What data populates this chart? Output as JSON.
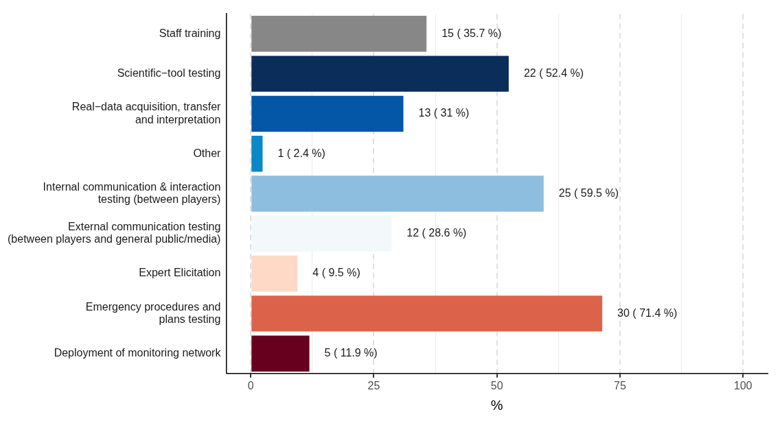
{
  "chart_data": {
    "type": "bar",
    "orientation": "horizontal",
    "xlabel": "%",
    "categories": [
      "Staff training",
      "Scientific−tool testing",
      "Real−data acquisition, transfer\nand interpretation",
      "Other",
      "Internal communication & interaction\ntesting (between players)",
      "External communication testing\n(between players and general public/media)",
      "Expert Elicitation",
      "Emergency procedures and\nplans testing",
      "Deployment of monitoring network"
    ],
    "values": [
      35.7,
      52.4,
      31,
      2.4,
      59.5,
      28.6,
      9.5,
      71.4,
      11.9
    ],
    "colors": [
      "#878787",
      "#0a2d5a",
      "#0457a6",
      "#0a87c6",
      "#8dbedf",
      "#f3f8fb",
      "#fdd9c6",
      "#dc634a",
      "#67001f"
    ],
    "value_labels": [
      "15 ( 35.7 %)",
      "22 ( 52.4 %)",
      "13 ( 31 %)",
      "1 ( 2.4 %)",
      "25 ( 59.5 %)",
      "12 ( 28.6 %)",
      "4 ( 9.5 %)",
      "30 ( 71.4 %)",
      "5 ( 11.9 %)"
    ],
    "xlim": [
      -5,
      105
    ],
    "xticks": [
      0,
      {
        "value": 12.5,
        "label": null
      },
      25,
      {
        "value": 37.5,
        "label": null
      },
      50,
      {
        "value": 62.5,
        "label": null
      },
      75,
      {
        "value": 87.5,
        "label": null
      },
      100
    ],
    "grid": "x",
    "legend": false
  }
}
